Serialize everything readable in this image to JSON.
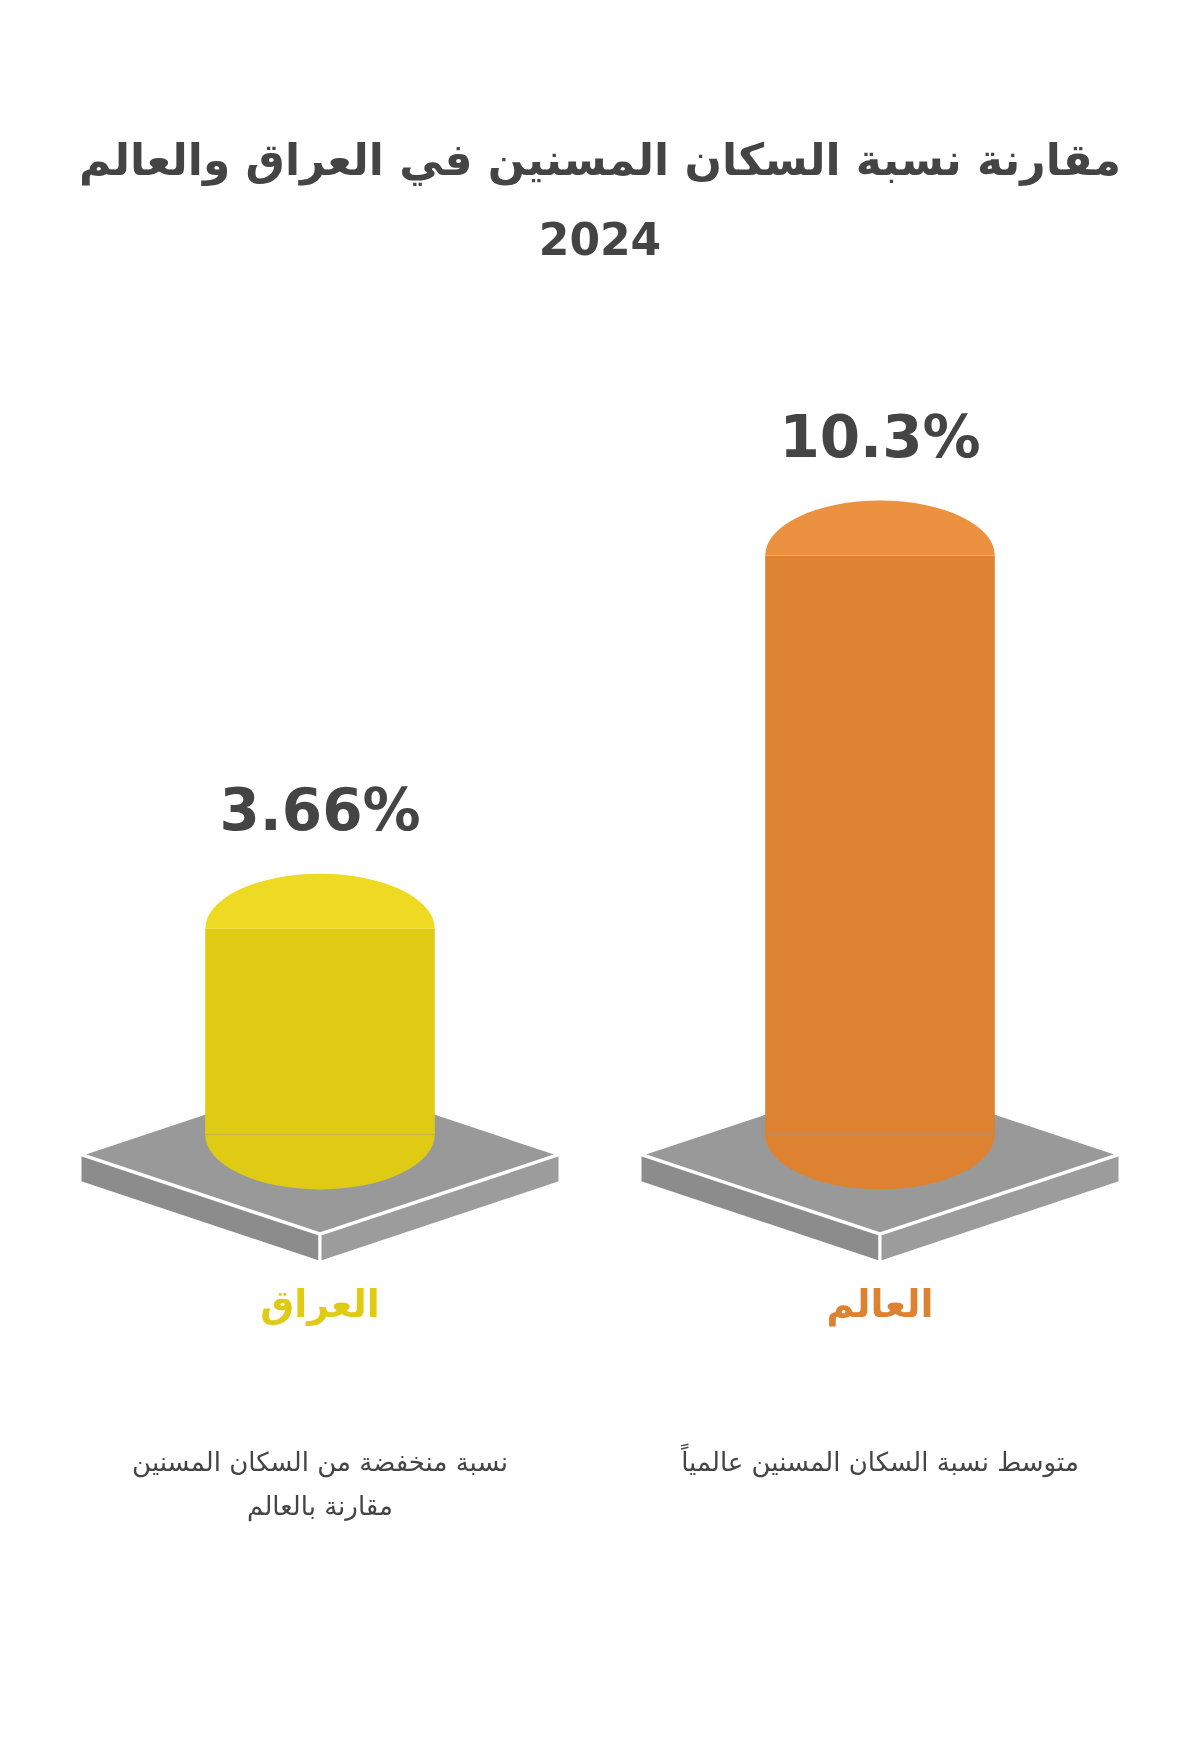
{
  "chart_data": {
    "type": "bar",
    "title": "مقارنة نسبة السكان المسنين في العراق والعالم 2024",
    "categories": [
      "العراق",
      "العالم"
    ],
    "values": [
      3.66,
      10.3
    ],
    "colors": [
      "#e0cb14",
      "#dd8230"
    ],
    "value_labels": [
      "3.66%",
      "10.3%"
    ],
    "annotations": [
      "نسبة منخفضة من السكان المسنين مقارنة بالعالم",
      "متوسط نسبة السكان المسنين عالمياً"
    ],
    "grid": false,
    "legend": false
  }
}
